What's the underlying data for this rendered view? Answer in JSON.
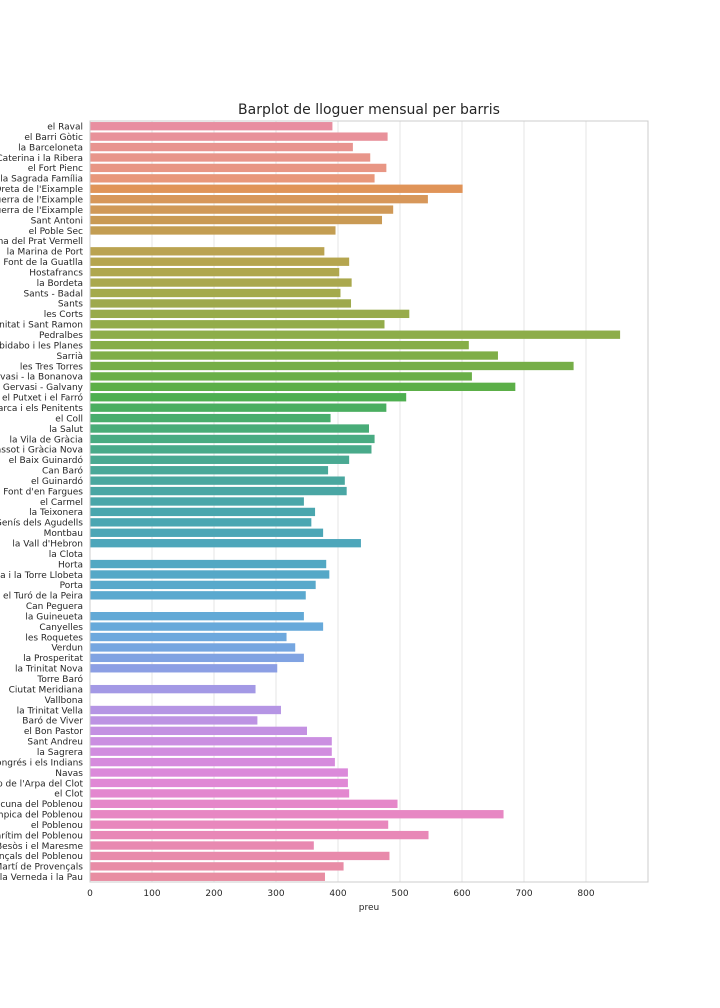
{
  "chart_data": {
    "type": "bar",
    "orientation": "horizontal",
    "title": "Barplot de lloguer mensual per barris",
    "xlabel": "preu",
    "ylabel": "",
    "xlim": [
      0,
      900
    ],
    "xticks": [
      0,
      100,
      200,
      300,
      400,
      500,
      600,
      700,
      800
    ],
    "grid": true,
    "categories": [
      "el Raval",
      "el Barri Gòtic",
      "la Barceloneta",
      "Sant Pere, Santa Caterina i la Ribera",
      "el Fort Pienc",
      "la Sagrada Família",
      "la Dreta de l'Eixample",
      "l'Antiga Esquerra de l'Eixample",
      "la Nova Esquerra de l'Eixample",
      "Sant Antoni",
      "el Poble Sec",
      "la Marina del Prat Vermell",
      "la Marina de Port",
      "la Font de la Guatlla",
      "Hostafrancs",
      "la Bordeta",
      "Sants - Badal",
      "Sants",
      "les Corts",
      "la Maternitat i Sant Ramon",
      "Pedralbes",
      "Vallvidrera, el Tibidabo i les Planes",
      "Sarrià",
      "les Tres Torres",
      "Sant Gervasi - la Bonanova",
      "Sant Gervasi - Galvany",
      "el Putxet i el Farró",
      "Vallcarca i els Penitents",
      "el Coll",
      "la Salut",
      "la Vila de Gràcia",
      "el Camp d'en Grassot i Gràcia Nova",
      "el Baix Guinardó",
      "Can Baró",
      "el Guinardó",
      "la Font d'en Fargues",
      "el Carmel",
      "la Teixonera",
      "Sant Genís dels Agudells",
      "Montbau",
      "la Vall d'Hebron",
      "la Clota",
      "Horta",
      "Vilapicina i la Torre Llobeta",
      "Porta",
      "el Turó de la Peira",
      "Can Peguera",
      "la Guineueta",
      "Canyelles",
      "les Roquetes",
      "Verdun",
      "la Prosperitat",
      "la Trinitat Nova",
      "Torre Baró",
      "Ciutat Meridiana",
      "Vallbona",
      "la Trinitat Vella",
      "Baró de Viver",
      "el Bon Pastor",
      "Sant Andreu",
      "la Sagrera",
      "el Congrés i els Indians",
      "Navas",
      "el Camp de l'Arpa del Clot",
      "el Clot",
      "el Parc i la Llacuna del Poblenou",
      "la Vila Olímpica del Poblenou",
      "el Poblenou",
      "Diagonal Mar i el Front Marítim del Poblenou",
      "el Besòs i el Maresme",
      "Provençals del Poblenou",
      "Sant Martí de Provençals",
      "la Verneda i la Pau"
    ],
    "values": [
      391,
      480,
      424,
      452,
      478,
      459,
      601,
      545,
      489,
      471,
      396,
      0,
      378,
      418,
      402,
      422,
      404,
      421,
      515,
      475,
      855,
      611,
      658,
      780,
      616,
      686,
      510,
      478,
      388,
      450,
      459,
      454,
      418,
      384,
      411,
      414,
      345,
      363,
      357,
      376,
      437,
      0,
      381,
      386,
      364,
      348,
      0,
      345,
      376,
      317,
      331,
      345,
      302,
      0,
      267,
      0,
      308,
      270,
      350,
      390,
      390,
      395,
      416,
      416,
      418,
      496,
      667,
      481,
      546,
      361,
      483,
      409,
      379
    ],
    "colors": [
      "#e88ea0",
      "#e8919a",
      "#e89490",
      "#e8958a",
      "#e89684",
      "#e8977a",
      "#e09458",
      "#d7975a",
      "#d09958",
      "#c99a54",
      "#c39d52",
      "#bfa052",
      "#baa351",
      "#b5a54f",
      "#afa74e",
      "#aaa84d",
      "#a4aa4c",
      "#9ea94c",
      "#98ab4b",
      "#93ac4a",
      "#8dad49",
      "#86ae48",
      "#7fae48",
      "#76ae48",
      "#6aaf48",
      "#5caf48",
      "#4eaf50",
      "#4aae60",
      "#49ad6d",
      "#49ac78",
      "#49ab82",
      "#49aa8a",
      "#4aa992",
      "#4aa899",
      "#4aa79f",
      "#4aa6a4",
      "#4aa6a9",
      "#4aa6ae",
      "#4ba6b2",
      "#4ca6b6",
      "#4da6ba",
      "#4fa7bf",
      "#52a8c3",
      "#55a8c7",
      "#58a9cb",
      "#5ba9cf",
      "#5fa9d3",
      "#62a9d6",
      "#67a9da",
      "#6da8dd",
      "#75a6e0",
      "#80a3e2",
      "#8c9fe4",
      "#989be5",
      "#a399e5",
      "#ad97e5",
      "#b595e4",
      "#bd93e3",
      "#c491e2",
      "#cb8fe1",
      "#d18ddf",
      "#d68bdd",
      "#db89da",
      "#e088d5",
      "#e387cf",
      "#e587c9",
      "#e787c3",
      "#e887bd",
      "#e888b7",
      "#e889b1",
      "#e88aab",
      "#e88ca6",
      "#e88da2"
    ]
  }
}
